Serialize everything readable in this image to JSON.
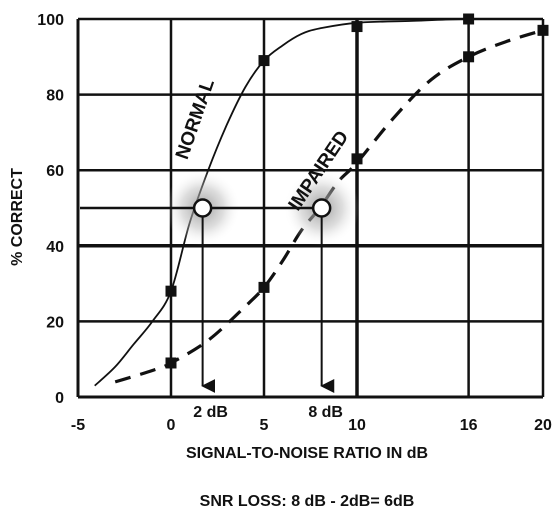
{
  "chart_data": {
    "type": "line",
    "xlabel": "SIGNAL-TO-NOISE RATIO IN dB",
    "ylabel": "% CORRECT",
    "xlim": [
      -5,
      20
    ],
    "ylim": [
      0,
      100
    ],
    "grid": true,
    "x_ticks": [
      {
        "value": -5,
        "label": "-5"
      },
      {
        "value": 0,
        "label": "0"
      },
      {
        "value": 5,
        "label": "5"
      },
      {
        "value": 10,
        "label": "10"
      },
      {
        "value": 16,
        "label": "16"
      },
      {
        "value": 20,
        "label": "20"
      }
    ],
    "y_ticks": [
      {
        "value": 0,
        "label": "0"
      },
      {
        "value": 20,
        "label": "20"
      },
      {
        "value": 40,
        "label": "40"
      },
      {
        "value": 60,
        "label": "60"
      },
      {
        "value": 80,
        "label": "80"
      },
      {
        "value": 100,
        "label": "100"
      }
    ],
    "series": [
      {
        "name": "NORMAL",
        "style": "solid",
        "curve": [
          [
            -4.1,
            3
          ],
          [
            -3,
            8
          ],
          [
            -2,
            14
          ],
          [
            -1,
            20
          ],
          [
            0,
            28
          ],
          [
            1,
            46
          ],
          [
            2,
            60
          ],
          [
            3,
            72
          ],
          [
            4,
            82
          ],
          [
            5,
            89
          ],
          [
            6,
            93
          ],
          [
            7,
            96
          ],
          [
            8,
            97.5
          ],
          [
            10,
            99
          ],
          [
            13,
            99.5
          ],
          [
            16,
            100
          ],
          [
            20,
            100
          ]
        ],
        "markers": [
          [
            0,
            28
          ],
          [
            5,
            89
          ],
          [
            10,
            98
          ],
          [
            16,
            100
          ]
        ],
        "label_position": {
          "x": 1.6,
          "y": 73
        }
      },
      {
        "name": "IMPAIRED",
        "style": "dashed",
        "curve": [
          [
            -3,
            4
          ],
          [
            -1,
            7
          ],
          [
            0,
            9
          ],
          [
            2,
            15
          ],
          [
            4,
            24
          ],
          [
            5,
            29
          ],
          [
            6,
            36
          ],
          [
            7,
            44
          ],
          [
            8,
            50
          ],
          [
            9,
            57
          ],
          [
            10,
            62
          ],
          [
            12,
            74
          ],
          [
            14,
            84
          ],
          [
            16,
            90
          ],
          [
            18,
            94
          ],
          [
            20,
            97
          ]
        ],
        "markers": [
          [
            0,
            9
          ],
          [
            5,
            29
          ],
          [
            10,
            63
          ],
          [
            16,
            90
          ],
          [
            20,
            97
          ]
        ],
        "label_position": {
          "x": 8.2,
          "y": 59
        }
      }
    ],
    "reference_line_y": 50,
    "threshold_points": [
      {
        "x": 1.7,
        "y": 50,
        "label": "2 dB"
      },
      {
        "x": 8.1,
        "y": 50,
        "label": "8 dB"
      }
    ],
    "footer": "SNR LOSS: 8 dB - 2dB= 6dB"
  },
  "colors": {
    "line": "#111111",
    "grid": "#111111",
    "marker": "#111111",
    "circle_fill": "#ffffff",
    "glow": "#9a9a9a"
  }
}
